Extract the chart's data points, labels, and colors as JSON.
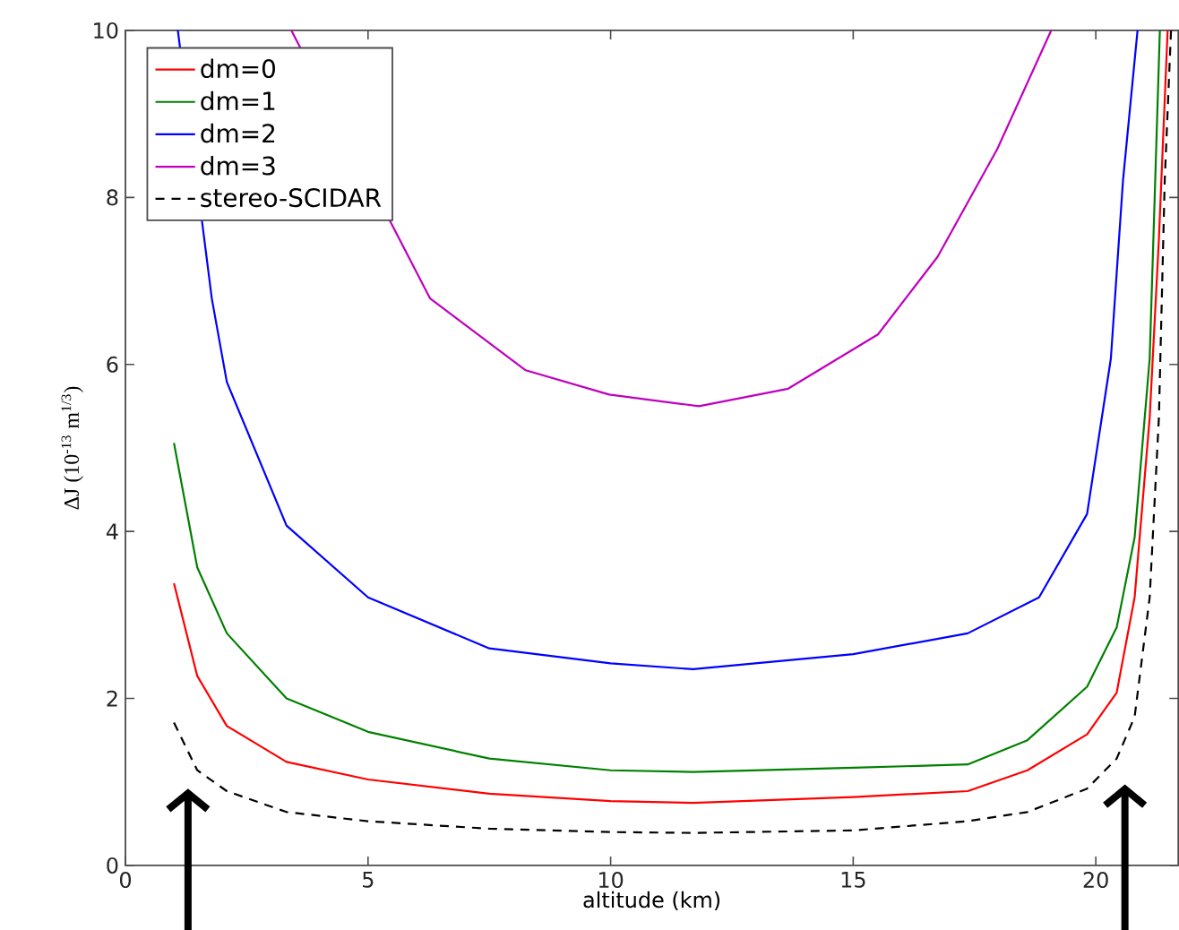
{
  "chart_data": {
    "type": "line",
    "xlabel": "altitude (km)",
    "ylabel": "ΔJ (10$^{-13}$ m$^{1/3}$)",
    "xlim": [
      0,
      21.7
    ],
    "ylim": [
      0,
      10
    ],
    "xticks": [
      0,
      5,
      10,
      15,
      20
    ],
    "yticks": [
      0,
      2,
      4,
      6,
      8,
      10
    ],
    "legend": "top left",
    "series": [
      {
        "name": "dm=0",
        "color": "#ff0000",
        "x": [
          1.0,
          1.48,
          2.09,
          3.32,
          5,
          7.5,
          10,
          11.7,
          15,
          17.36,
          18.59,
          19.82,
          20.43,
          20.8,
          21.11,
          21.3,
          21.48
        ],
        "values": [
          3.38,
          2.27,
          1.67,
          1.24,
          1.03,
          0.86,
          0.77,
          0.75,
          0.82,
          0.89,
          1.14,
          1.57,
          2.07,
          3.21,
          5.36,
          7.5,
          10
        ]
      },
      {
        "name": "dm=1",
        "color": "#008000",
        "x": [
          1.0,
          1.48,
          2.09,
          3.32,
          5,
          7.5,
          10,
          11.7,
          15,
          17.36,
          18.59,
          19.82,
          20.43,
          20.8,
          21.11,
          21.32
        ],
        "values": [
          5.06,
          3.57,
          2.78,
          2.0,
          1.6,
          1.28,
          1.14,
          1.12,
          1.17,
          1.21,
          1.5,
          2.14,
          2.85,
          3.93,
          6.07,
          10
        ]
      },
      {
        "name": "dm=2",
        "color": "#0000ff",
        "x": [
          1.08,
          1.78,
          2.09,
          3.32,
          5,
          7.5,
          10,
          11.7,
          15,
          17.36,
          18.83,
          19.82,
          20.31,
          20.56,
          20.86
        ],
        "values": [
          10,
          6.79,
          5.79,
          4.07,
          3.21,
          2.6,
          2.42,
          2.35,
          2.53,
          2.78,
          3.21,
          4.21,
          6.07,
          8.2,
          10
        ]
      },
      {
        "name": "dm=3",
        "color": "#bf00bf",
        "x": [
          3.42,
          6.28,
          8.25,
          9.97,
          11.82,
          13.66,
          15.51,
          16.74,
          17.97,
          19.08
        ],
        "values": [
          10,
          6.79,
          5.93,
          5.64,
          5.5,
          5.71,
          6.36,
          7.29,
          8.58,
          10
        ]
      },
      {
        "name": "stereo-SCIDAR",
        "color": "#000000",
        "line_style": "dashed",
        "x": [
          1.0,
          1.48,
          2.09,
          3.32,
          5,
          7.5,
          10,
          11.7,
          15,
          17.36,
          18.59,
          19.82,
          20.43,
          20.8,
          21.11,
          21.3,
          21.42,
          21.55
        ],
        "values": [
          1.71,
          1.14,
          0.89,
          0.64,
          0.53,
          0.44,
          0.4,
          0.39,
          0.42,
          0.53,
          0.64,
          0.92,
          1.28,
          1.78,
          3.21,
          5.36,
          8.2,
          10
        ]
      }
    ]
  }
}
